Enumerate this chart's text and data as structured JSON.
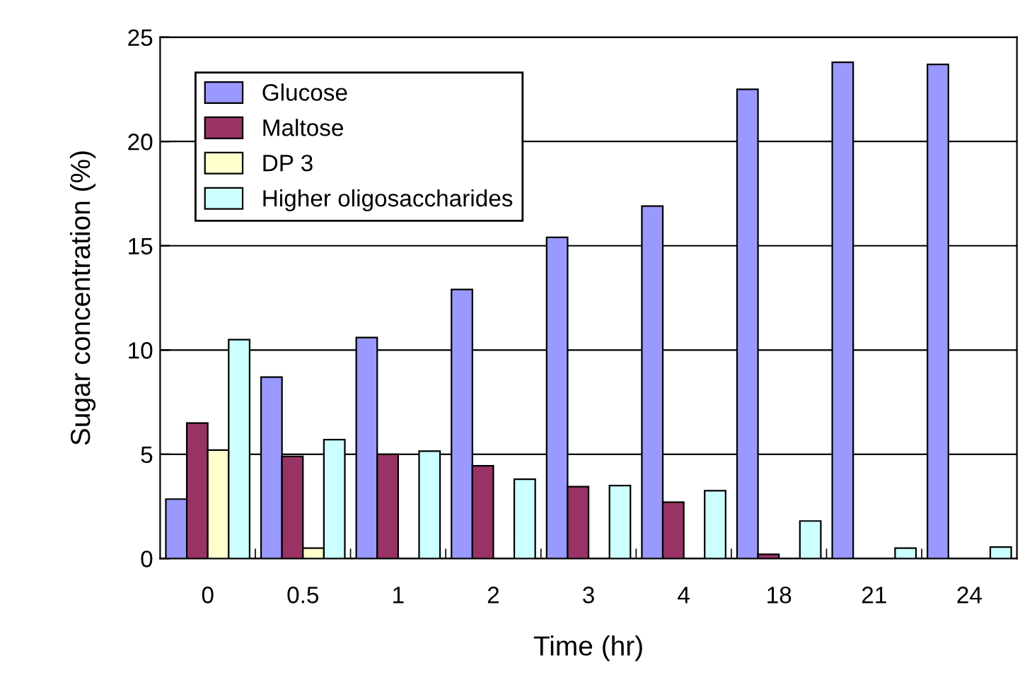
{
  "chart_data": {
    "type": "bar",
    "xlabel": "Time (hr)",
    "ylabel": "Sugar concentration (%)",
    "categories": [
      "0",
      "0.5",
      "1",
      "2",
      "3",
      "4",
      "18",
      "21",
      "24"
    ],
    "series": [
      {
        "name": "Glucose",
        "color": "#9999ff",
        "values": [
          2.85,
          8.7,
          10.6,
          12.9,
          15.4,
          16.9,
          22.5,
          23.8,
          23.7
        ]
      },
      {
        "name": "Maltose",
        "color": "#993366",
        "values": [
          6.5,
          4.9,
          5.0,
          4.45,
          3.45,
          2.7,
          0.2,
          null,
          null
        ]
      },
      {
        "name": "DP 3",
        "color": "#ffffcc",
        "values": [
          5.2,
          0.5,
          null,
          null,
          null,
          null,
          null,
          null,
          null
        ]
      },
      {
        "name": "Higher oligosaccharides",
        "color": "#ccffff",
        "values": [
          10.5,
          5.7,
          5.15,
          3.8,
          3.5,
          3.25,
          1.8,
          0.5,
          0.55
        ]
      }
    ],
    "ylim": [
      0,
      25
    ],
    "yticks": [
      0,
      5,
      10,
      15,
      20,
      25
    ],
    "grid": "y",
    "legend": "top left"
  }
}
